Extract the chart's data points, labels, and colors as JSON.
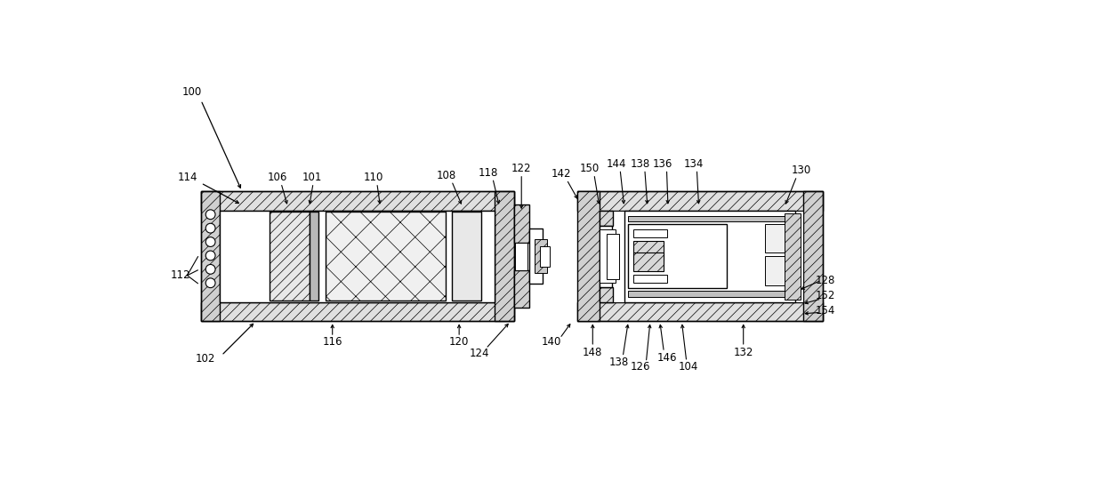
{
  "fig_width": 12.4,
  "fig_height": 5.41,
  "dpi": 100,
  "bg_color": "#ffffff",
  "lc": "#000000",
  "fs": 8.5,
  "lw": 1.0,
  "lw_thin": 0.7,
  "hatch_lw": 0.5
}
